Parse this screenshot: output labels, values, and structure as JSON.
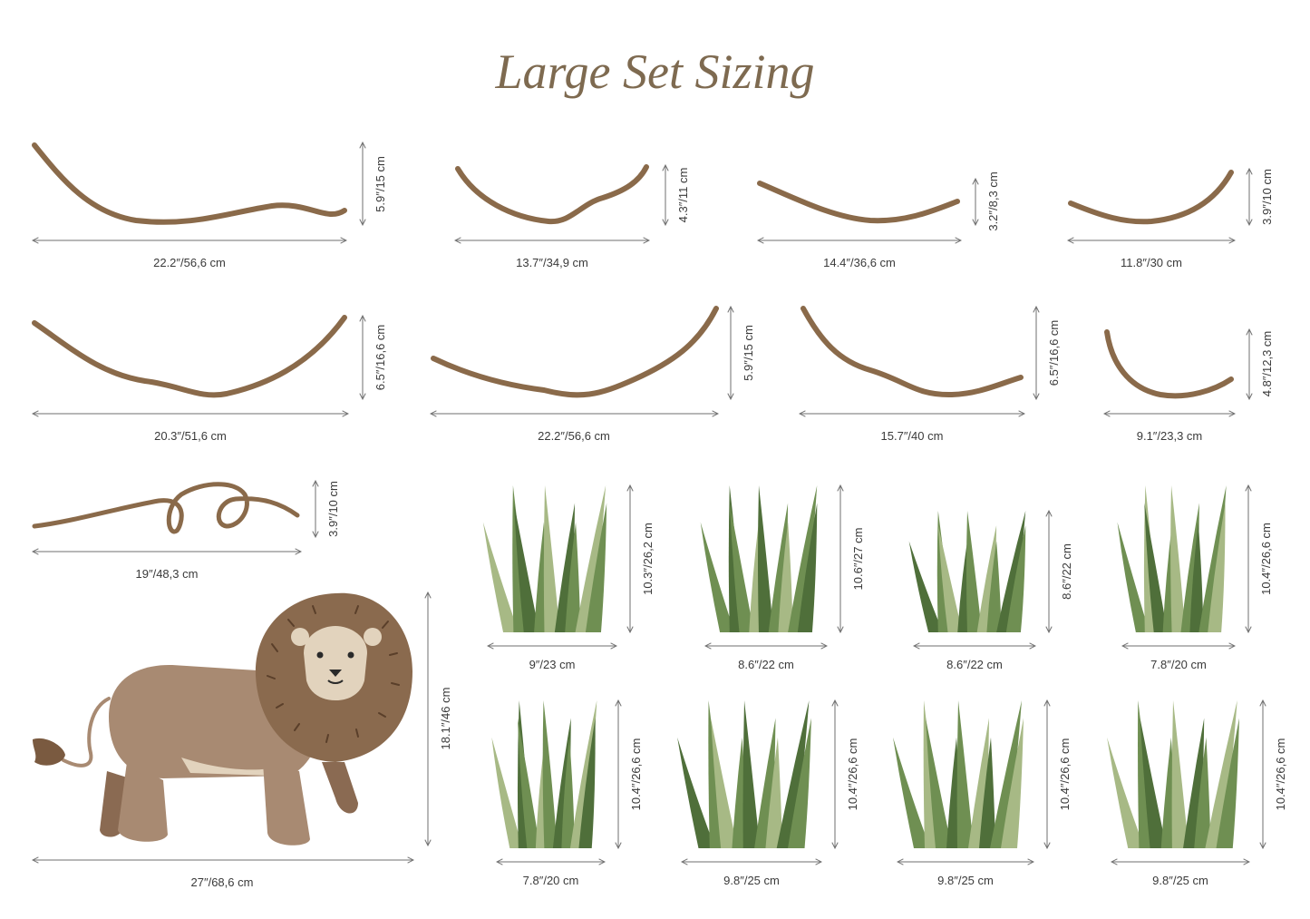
{
  "title": "Large Set Sizing",
  "colors": {
    "vine": "#8a6a4a",
    "arrow": "#6f6f6f",
    "title": "#7e6a50",
    "grass_dark": "#4f6f3a",
    "grass_mid": "#6f8f52",
    "grass_light": "#a7b985",
    "lion_body": "#a88a72",
    "lion_mane": "#8a6a4e",
    "lion_face": "#e2d3bd"
  },
  "vines": [
    {
      "width": "22.2″/56,6 cm",
      "height": "5.9″/15 cm"
    },
    {
      "width": "13.7″/34,9 cm",
      "height": "4.3″/11 cm"
    },
    {
      "width": "14.4″/36,6 cm",
      "height": "3.2″/8,3 cm"
    },
    {
      "width": "11.8″/30 cm",
      "height": "3.9″/10 cm"
    },
    {
      "width": "20.3″/51,6 cm",
      "height": "6.5″/16,6 cm"
    },
    {
      "width": "22.2″/56,6 cm",
      "height": "5.9″/15 cm"
    },
    {
      "width": "15.7″/40 cm",
      "height": "6.5″/16,6 cm"
    },
    {
      "width": "9.1″/23,3 cm",
      "height": "4.8″/12,3 cm"
    },
    {
      "width": "19″/48,3 cm",
      "height": "3.9″/10 cm"
    }
  ],
  "lion": {
    "width": "27″/68,6 cm",
    "height": "18.1″/46 cm"
  },
  "grasses": [
    {
      "width": "9″/23 cm",
      "height": "10.3″/26,2 cm"
    },
    {
      "width": "8.6″/22 cm",
      "height": "10.6″/27 cm"
    },
    {
      "width": "8.6″/22 cm",
      "height": "8.6″/22 cm"
    },
    {
      "width": "7.8″/20 cm",
      "height": "10.4″/26,6 cm"
    },
    {
      "width": "7.8″/20 cm",
      "height": "10.4″/26,6 cm"
    },
    {
      "width": "9.8″/25 cm",
      "height": "10.4″/26,6 cm"
    },
    {
      "width": "9.8″/25 cm",
      "height": "10.4″/26,6 cm"
    },
    {
      "width": "9.8″/25 cm",
      "height": "10.4″/26,6 cm"
    }
  ]
}
